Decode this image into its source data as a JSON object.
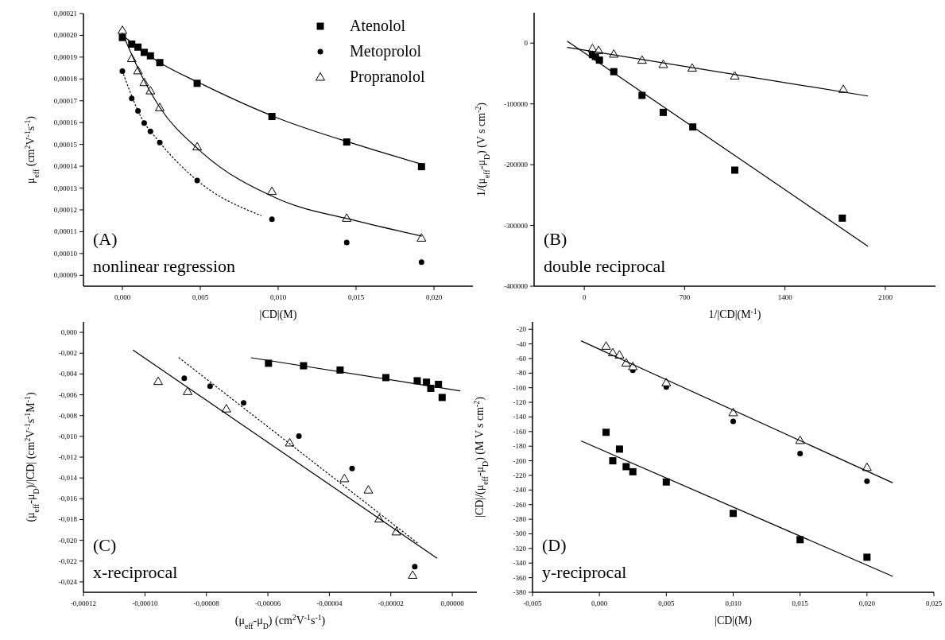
{
  "chart_data": [
    {
      "type": "scatter",
      "xlabel": "|CD|(M)",
      "ylabel": "μ$_{eff}$ (cm$^{2}$V$^{-1}$s$^{-1}$)",
      "legend": "top right",
      "grid": false,
      "xlim": [
        -0.0025,
        0.0225
      ],
      "xticks": [
        {
          "value": 0,
          "label": "0,000"
        },
        {
          "value": 0.005,
          "label": "0,005"
        },
        {
          "value": 0.01,
          "label": "0,010"
        },
        {
          "value": 0.015,
          "label": "0,015"
        },
        {
          "value": 0.02,
          "label": "0,020"
        }
      ],
      "ylim": [
        8.5e-05,
        0.00021
      ],
      "yticks": [
        {
          "value": 9e-05,
          "label": "0,00009"
        },
        {
          "value": 0.0001,
          "label": "0,00010"
        },
        {
          "value": 0.00011,
          "label": "0,00011"
        },
        {
          "value": 0.00012,
          "label": "0,00012"
        },
        {
          "value": 0.00013,
          "label": "0,00013"
        },
        {
          "value": 0.00014,
          "label": "0,00014"
        },
        {
          "value": 0.00015,
          "label": "0,00015"
        },
        {
          "value": 0.00016,
          "label": "0,00016"
        },
        {
          "value": 0.00017,
          "label": "0,00017"
        },
        {
          "value": 0.00018,
          "label": "0,00018"
        },
        {
          "value": 0.00019,
          "label": "0,00019"
        },
        {
          "value": 0.0002,
          "label": "0,00020"
        },
        {
          "value": 0.00021,
          "label": "0,00021"
        }
      ],
      "annotations": [
        "(A)",
        "nonlinear regression"
      ],
      "series": [
        {
          "name": "Atenolol",
          "type": "scatter",
          "marker": "square",
          "color": "#000000",
          "x": [
            0,
            0.0006,
            0.001,
            0.0014,
            0.0018,
            0.0024,
            0.0048,
            0.0096,
            0.0144,
            0.0192
          ],
          "values": [
            0.000199,
            0.000196,
            0.0001946,
            0.0001922,
            0.0001906,
            0.0001875,
            0.000178,
            0.0001628,
            0.0001511,
            0.0001398
          ]
        },
        {
          "name": "Metoprolol",
          "type": "scatter",
          "marker": "circle",
          "color": "#000000",
          "x": [
            0,
            0.0006,
            0.001,
            0.0014,
            0.0018,
            0.0024,
            0.0048,
            0.0096,
            0.0144,
            0.0192
          ],
          "values": [
            0.0001836,
            0.0001711,
            0.0001654,
            0.0001598,
            0.000156,
            0.0001509,
            0.0001335,
            0.0001157,
            0.000105,
            9.6e-05
          ]
        },
        {
          "name": "Propranolol",
          "type": "scatter",
          "marker": "triangle",
          "color": "#000000",
          "x": [
            0,
            0.0006,
            0.001,
            0.0014,
            0.0018,
            0.0024,
            0.0048,
            0.0096,
            0.0144,
            0.0192
          ],
          "values": [
            0.0002023,
            0.0001894,
            0.0001838,
            0.0001784,
            0.0001746,
            0.0001669,
            0.0001489,
            0.0001285,
            0.0001162,
            0.0001071
          ]
        },
        {
          "type": "line",
          "marker": "none",
          "line_style": "solid",
          "color": "#000000",
          "x": [
            0,
            0.0024,
            0.005,
            0.01,
            0.015,
            0.0192
          ],
          "values": [
            0.0002,
            0.0001875,
            0.000178,
            0.000162,
            0.00015,
            0.000141
          ]
        },
        {
          "type": "line",
          "marker": "none",
          "line_style": "solid",
          "color": "#000000",
          "x": [
            0,
            0.0012,
            0.0024,
            0.005,
            0.01,
            0.015,
            0.0192
          ],
          "values": [
            0.000201,
            0.000182,
            0.000167,
            0.000147,
            0.000125,
            0.000115,
            0.000108
          ]
        },
        {
          "type": "line",
          "marker": "none",
          "line_style": "dotted",
          "color": "#000000",
          "x": [
            0,
            0.0012,
            0.0024,
            0.0048,
            0.0089
          ],
          "values": [
            0.0001836,
            0.0001625,
            0.0001509,
            0.0001335,
            0.0001174
          ]
        }
      ]
    },
    {
      "type": "scatter",
      "xlabel": "1/|CD|(M$^{-1}$)",
      "ylabel": "1/(μ$_{eff}$-μ$_{D}$) (V s cm$^{-2}$)",
      "grid": false,
      "xlim": [
        -350,
        2450
      ],
      "xticks": [
        0,
        700,
        1400,
        2100
      ],
      "ylim": [
        -400000,
        50000
      ],
      "yticks": [
        -400000,
        -300000,
        -200000,
        -100000,
        0
      ],
      "annotations": [
        "(B)",
        "double reciprocal"
      ],
      "series": [
        {
          "type": "scatter",
          "marker": "square",
          "color": "#000000",
          "x": [
            57,
            78,
            106,
            206,
            403,
            551,
            757,
            1050,
            1800
          ],
          "values": [
            -19000,
            -22000,
            -28000,
            -47000,
            -86000,
            -114000,
            -138000,
            -209000,
            -288000
          ]
        },
        {
          "type": "scatter",
          "marker": "triangle",
          "color": "#000000",
          "x": [
            57,
            100,
            206,
            403,
            551,
            753,
            1050,
            1807
          ],
          "values": [
            -9000,
            -12000,
            -18000,
            -28000,
            -35000,
            -41000,
            -54000,
            -76000
          ]
        },
        {
          "type": "line",
          "marker": "none",
          "line_style": "solid",
          "color": "#000000",
          "x": [
            -117,
            1977
          ],
          "values": [
            3000,
            -334000
          ]
        },
        {
          "type": "line",
          "marker": "none",
          "line_style": "solid",
          "color": "#000000",
          "x": [
            -117,
            1977
          ],
          "values": [
            -7000,
            -87000
          ]
        }
      ]
    },
    {
      "type": "scatter",
      "xlabel": "(μ$_{eff}$-μ$_{D}$) (cm$^{2}$V$^{-1}$s$^{-1}$)",
      "ylabel": "(μ$_{eff}$-μ$_{D}$)/|CD| (cm$^{2}$V$^{-1}$s$^{-1}$M$^{-1}$)",
      "grid": false,
      "xlim": [
        -0.00012,
        8e-06
      ],
      "xticks": [
        {
          "value": -0.00012,
          "label": "-0,00012"
        },
        {
          "value": -0.0001,
          "label": "-0,00010"
        },
        {
          "value": -8e-05,
          "label": "-0,00008"
        },
        {
          "value": -6e-05,
          "label": "-0,00006"
        },
        {
          "value": -4e-05,
          "label": "-0,00004"
        },
        {
          "value": -2e-05,
          "label": "-0,00002"
        },
        {
          "value": 0,
          "label": "0,00000"
        }
      ],
      "ylim": [
        -0.025,
        0.001
      ],
      "yticks": [
        {
          "value": 0,
          "label": "0,000"
        },
        {
          "value": -0.002,
          "label": "-0,002"
        },
        {
          "value": -0.004,
          "label": "-0,004"
        },
        {
          "value": -0.006,
          "label": "-0,006"
        },
        {
          "value": -0.008,
          "label": "-0,008"
        },
        {
          "value": -0.01,
          "label": "-0,010"
        },
        {
          "value": -0.012,
          "label": "-0,012"
        },
        {
          "value": -0.014,
          "label": "-0,014"
        },
        {
          "value": -0.016,
          "label": "-0,016"
        },
        {
          "value": -0.018,
          "label": "-0,018"
        },
        {
          "value": -0.02,
          "label": "-0,020"
        },
        {
          "value": -0.022,
          "label": "-0,022"
        },
        {
          "value": -0.024,
          "label": "-0,024"
        }
      ],
      "annotations": [
        "(C)",
        "x-reciprocal"
      ],
      "series": [
        {
          "type": "scatter",
          "marker": "square",
          "color": "#000000",
          "x": [
            -5.98e-05,
            -4.84e-05,
            -3.65e-05,
            -2.16e-05,
            -1.14e-05,
            -8.4e-06,
            -7e-06,
            -4.5e-06,
            -3.3e-06
          ],
          "values": [
            -0.00297,
            -0.00321,
            -0.00362,
            -0.00435,
            -0.00465,
            -0.00479,
            -0.00538,
            -0.005,
            -0.00626
          ]
        },
        {
          "type": "scatter",
          "marker": "circle",
          "color": "#000000",
          "x": [
            -8.72e-05,
            -7.88e-05,
            -6.79e-05,
            -4.99e-05,
            -3.26e-05,
            -1.22e-05
          ],
          "values": [
            -0.00441,
            -0.00518,
            -0.00679,
            -0.00997,
            -0.01309,
            -0.02253
          ]
        },
        {
          "type": "scatter",
          "marker": "triangle",
          "color": "#000000",
          "x": [
            -9.57e-05,
            -8.61e-05,
            -7.35e-05,
            -5.29e-05,
            -3.51e-05,
            -2.73e-05,
            -2.38e-05,
            -1.82e-05,
            -1.29e-05
          ],
          "values": [
            -0.00471,
            -0.00568,
            -0.00735,
            -0.01062,
            -0.01406,
            -0.01515,
            -0.01794,
            -0.01918,
            -0.02335
          ]
        },
        {
          "type": "line",
          "marker": "none",
          "line_style": "solid",
          "color": "#000000",
          "x": [
            -6.54e-05,
            2.5e-06
          ],
          "values": [
            -0.00244,
            -0.00562
          ]
        },
        {
          "type": "line",
          "marker": "none",
          "line_style": "dotted",
          "color": "#000000",
          "x": [
            -8.89e-05,
            -1.14e-05
          ],
          "values": [
            -0.00244,
            -0.02024
          ]
        },
        {
          "type": "line",
          "marker": "none",
          "line_style": "solid",
          "color": "#000000",
          "x": [
            -0.0001038,
            -5e-06
          ],
          "values": [
            -0.00171,
            -0.02171
          ]
        }
      ]
    },
    {
      "type": "scatter",
      "xlabel": "|CD|(M)",
      "ylabel": "|CD|/(μ$_{eff}$-μ$_{D}$) (M V s cm$^{-2}$)",
      "grid": false,
      "xlim": [
        -0.005,
        0.025
      ],
      "xticks": [
        {
          "value": -0.005,
          "label": "-0,005"
        },
        {
          "value": 0,
          "label": "0,000"
        },
        {
          "value": 0.005,
          "label": "0,005"
        },
        {
          "value": 0.01,
          "label": "0,010"
        },
        {
          "value": 0.015,
          "label": "0,015"
        },
        {
          "value": 0.02,
          "label": "0,020"
        },
        {
          "value": 0.025,
          "label": "0,025"
        }
      ],
      "ylim": [
        -380,
        -10
      ],
      "yticks": [
        -380,
        -360,
        -340,
        -320,
        -300,
        -280,
        -260,
        -240,
        -220,
        -200,
        -180,
        -160,
        -140,
        -120,
        -100,
        -80,
        -60,
        -40,
        -20
      ],
      "annotations": [
        "(D)",
        "y-reciprocal"
      ],
      "series": [
        {
          "type": "scatter",
          "marker": "square",
          "color": "#000000",
          "x": [
            0.0005,
            0.001,
            0.0015,
            0.002,
            0.0025,
            0.005,
            0.01,
            0.015,
            0.02
          ],
          "values": [
            -161,
            -200,
            -184,
            -208,
            -215,
            -229,
            -272,
            -308,
            -332
          ]
        },
        {
          "type": "scatter",
          "marker": "circle",
          "color": "#000000",
          "x": [
            0.0025,
            0.005,
            0.01,
            0.015,
            0.02
          ],
          "values": [
            -76,
            -99,
            -146,
            -190,
            -228
          ]
        },
        {
          "type": "scatter",
          "marker": "triangle",
          "color": "#000000",
          "x": [
            0.0005,
            0.001,
            0.0015,
            0.002,
            0.0025,
            0.005,
            0.01,
            0.015,
            0.02
          ],
          "values": [
            -43,
            -52,
            -55,
            -66,
            -71,
            -93,
            -134,
            -172,
            -209
          ]
        },
        {
          "type": "line",
          "marker": "none",
          "line_style": "solid",
          "color": "#000000",
          "x": [
            -0.00135,
            0.0219
          ],
          "values": [
            -173,
            -358
          ]
        },
        {
          "type": "line",
          "marker": "none",
          "line_style": "solid",
          "color": "#000000",
          "x": [
            -0.00135,
            0.0219
          ],
          "values": [
            -36,
            -230
          ]
        }
      ]
    }
  ]
}
